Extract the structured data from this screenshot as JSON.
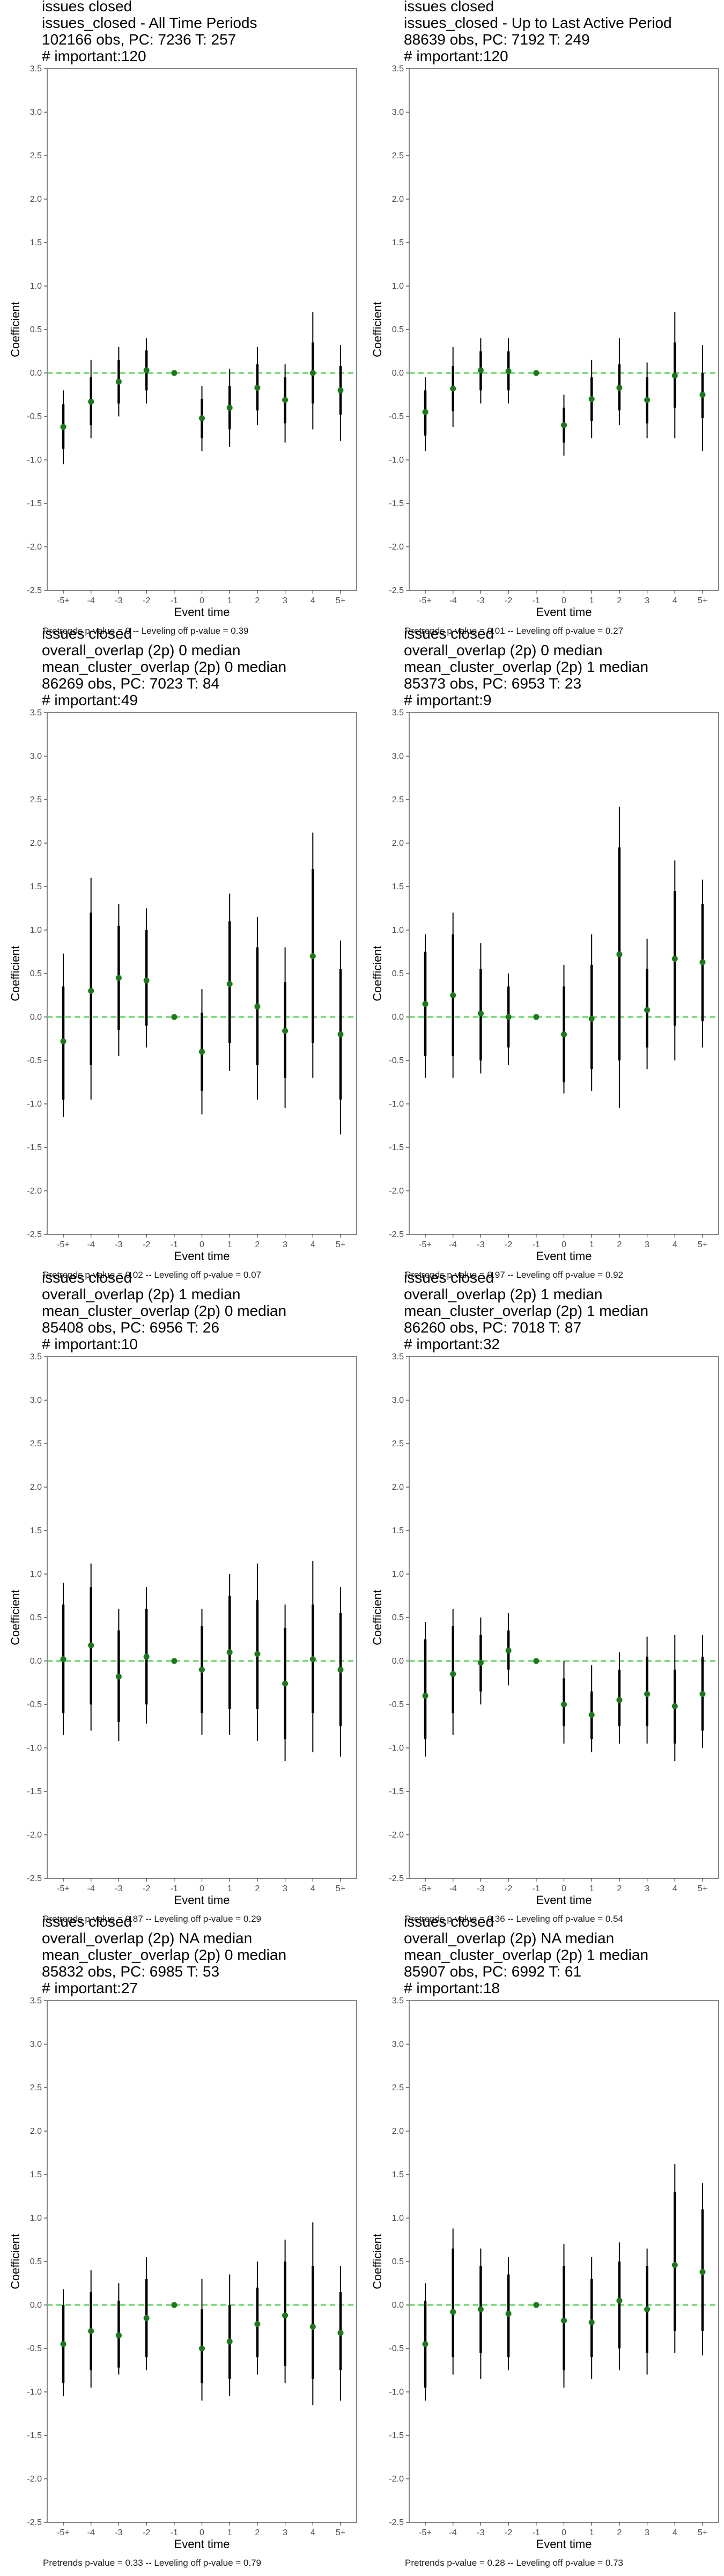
{
  "common": {
    "xlabel": "Event time",
    "ylabel": "Coefficient",
    "x_categories": [
      "-5+",
      "-4",
      "-3",
      "-2",
      "-1",
      "0",
      "1",
      "2",
      "3",
      "4",
      "5+"
    ],
    "y_ticks": [
      "3.5",
      "3.0",
      "2.5",
      "2.0",
      "1.5",
      "1.0",
      "0.5",
      "0.0",
      "-0.5",
      "-1.0",
      "-1.5",
      "-2.0",
      "-2.5"
    ],
    "ylim": [
      -2.5,
      3.5
    ],
    "reference_line": 0,
    "point_color": "#1a7a1a",
    "reference_color": "#33cc33",
    "ci_color": "#000000"
  },
  "chart_data": [
    {
      "type": "scatter",
      "title_lines": [
        "issues closed",
        "issues_closed - All Time Periods",
        "102166 obs, PC: 7236 T: 257",
        "# important:120"
      ],
      "footer": "Pretrends p-value = 0 -- Leveling off p-value = 0.39",
      "points": [
        -0.62,
        -0.33,
        -0.1,
        0.03,
        0.0,
        -0.52,
        -0.4,
        -0.17,
        -0.31,
        0.0,
        -0.2
      ],
      "ci_inner": [
        [
          -0.87,
          -0.36
        ],
        [
          -0.6,
          -0.05
        ],
        [
          -0.35,
          0.15
        ],
        [
          -0.2,
          0.26
        ],
        null,
        [
          -0.75,
          -0.3
        ],
        [
          -0.65,
          -0.15
        ],
        [
          -0.43,
          0.1
        ],
        [
          -0.58,
          -0.05
        ],
        [
          -0.35,
          0.35
        ],
        [
          -0.48,
          0.08
        ]
      ],
      "ci_outer": [
        [
          -1.05,
          -0.2
        ],
        [
          -0.75,
          0.15
        ],
        [
          -0.5,
          0.3
        ],
        [
          -0.35,
          0.4
        ],
        null,
        [
          -0.9,
          -0.15
        ],
        [
          -0.85,
          0.05
        ],
        [
          -0.6,
          0.3
        ],
        [
          -0.8,
          0.1
        ],
        [
          -0.65,
          0.7
        ],
        [
          -0.78,
          0.32
        ]
      ]
    },
    {
      "type": "scatter",
      "title_lines": [
        "issues closed",
        "issues_closed - Up to Last Active Period",
        "88639 obs, PC: 7192 T: 249",
        "# important:120"
      ],
      "footer": "Pretrends p-value = 0.01 -- Leveling off p-value = 0.27",
      "points": [
        -0.45,
        -0.18,
        0.03,
        0.02,
        0.0,
        -0.6,
        -0.3,
        -0.17,
        -0.31,
        -0.03,
        -0.25
      ],
      "ci_inner": [
        [
          -0.72,
          -0.2
        ],
        [
          -0.44,
          0.08
        ],
        [
          -0.2,
          0.25
        ],
        [
          -0.2,
          0.25
        ],
        null,
        [
          -0.8,
          -0.4
        ],
        [
          -0.55,
          -0.05
        ],
        [
          -0.43,
          0.1
        ],
        [
          -0.58,
          -0.05
        ],
        [
          -0.4,
          0.35
        ],
        [
          -0.52,
          0.0
        ]
      ],
      "ci_outer": [
        [
          -0.9,
          -0.05
        ],
        [
          -0.62,
          0.3
        ],
        [
          -0.35,
          0.4
        ],
        [
          -0.35,
          0.4
        ],
        null,
        [
          -0.95,
          -0.25
        ],
        [
          -0.75,
          0.15
        ],
        [
          -0.6,
          0.4
        ],
        [
          -0.75,
          0.12
        ],
        [
          -0.75,
          0.7
        ],
        [
          -0.9,
          0.32
        ]
      ]
    },
    {
      "type": "scatter",
      "title_lines": [
        "issues closed",
        "overall_overlap (2p) 0 median",
        "mean_cluster_overlap (2p) 0 median",
        "86269 obs, PC: 7023 T: 84",
        "# important:49"
      ],
      "footer": "Pretrends p-value = 0.02 -- Leveling off p-value = 0.07",
      "points": [
        -0.28,
        0.3,
        0.45,
        0.42,
        0.0,
        -0.4,
        0.38,
        0.12,
        -0.16,
        0.7,
        -0.2
      ],
      "ci_inner": [
        [
          -0.95,
          0.35
        ],
        [
          -0.55,
          1.2
        ],
        [
          -0.15,
          1.05
        ],
        [
          -0.1,
          1.0
        ],
        null,
        [
          -0.85,
          0.05
        ],
        [
          -0.3,
          1.1
        ],
        [
          -0.55,
          0.8
        ],
        [
          -0.7,
          0.4
        ],
        [
          -0.3,
          1.7
        ],
        [
          -0.95,
          0.55
        ]
      ],
      "ci_outer": [
        [
          -1.15,
          0.73
        ],
        [
          -0.95,
          1.6
        ],
        [
          -0.45,
          1.3
        ],
        [
          -0.35,
          1.25
        ],
        null,
        [
          -1.12,
          0.32
        ],
        [
          -0.62,
          1.42
        ],
        [
          -0.95,
          1.15
        ],
        [
          -1.05,
          0.8
        ],
        [
          -0.7,
          2.12
        ],
        [
          -1.35,
          0.88
        ]
      ]
    },
    {
      "type": "scatter",
      "title_lines": [
        "issues closed",
        "overall_overlap (2p) 0 median",
        "mean_cluster_overlap (2p) 1 median",
        "85373 obs, PC: 6953 T: 23",
        "# important:9"
      ],
      "footer": "Pretrends p-value = 0.97 -- Leveling off p-value = 0.92",
      "points": [
        0.15,
        0.25,
        0.04,
        0.0,
        0.0,
        -0.2,
        -0.02,
        0.72,
        0.08,
        0.67,
        0.63
      ],
      "ci_inner": [
        [
          -0.45,
          0.75
        ],
        [
          -0.45,
          0.95
        ],
        [
          -0.5,
          0.55
        ],
        [
          -0.35,
          0.35
        ],
        null,
        [
          -0.75,
          0.35
        ],
        [
          -0.6,
          0.6
        ],
        [
          -0.5,
          1.95
        ],
        [
          -0.35,
          0.55
        ],
        [
          -0.1,
          1.45
        ],
        [
          -0.05,
          1.3
        ]
      ],
      "ci_outer": [
        [
          -0.7,
          0.95
        ],
        [
          -0.7,
          1.2
        ],
        [
          -0.65,
          0.85
        ],
        [
          -0.55,
          0.5
        ],
        null,
        [
          -0.88,
          0.6
        ],
        [
          -0.85,
          0.95
        ],
        [
          -1.05,
          2.42
        ],
        [
          -0.6,
          0.9
        ],
        [
          -0.5,
          1.8
        ],
        [
          -0.35,
          1.58
        ]
      ]
    },
    {
      "type": "scatter",
      "title_lines": [
        "issues closed",
        "overall_overlap (2p) 1 median",
        "mean_cluster_overlap (2p) 0 median",
        "85408 obs, PC: 6956 T: 26",
        "# important:10"
      ],
      "footer": "Pretrends p-value = 0.87 -- Leveling off p-value = 0.29",
      "points": [
        0.02,
        0.18,
        -0.18,
        0.05,
        0.0,
        -0.1,
        0.1,
        0.08,
        -0.26,
        0.02,
        -0.1
      ],
      "ci_inner": [
        [
          -0.6,
          0.65
        ],
        [
          -0.5,
          0.85
        ],
        [
          -0.7,
          0.35
        ],
        [
          -0.5,
          0.6
        ],
        null,
        [
          -0.6,
          0.4
        ],
        [
          -0.55,
          0.75
        ],
        [
          -0.55,
          0.7
        ],
        [
          -0.9,
          0.38
        ],
        [
          -0.6,
          0.65
        ],
        [
          -0.75,
          0.55
        ]
      ],
      "ci_outer": [
        [
          -0.85,
          0.9
        ],
        [
          -0.8,
          1.12
        ],
        [
          -0.92,
          0.6
        ],
        [
          -0.72,
          0.85
        ],
        null,
        [
          -0.85,
          0.6
        ],
        [
          -0.85,
          1.0
        ],
        [
          -0.92,
          1.12
        ],
        [
          -1.15,
          0.65
        ],
        [
          -1.05,
          1.15
        ],
        [
          -1.1,
          0.85
        ]
      ]
    },
    {
      "type": "scatter",
      "title_lines": [
        "issues closed",
        "overall_overlap (2p) 1 median",
        "mean_cluster_overlap (2p) 1 median",
        "86260 obs, PC: 7018 T: 87",
        "# important:32"
      ],
      "footer": "Pretrends p-value = 0.36 -- Leveling off p-value = 0.54",
      "points": [
        -0.4,
        -0.15,
        -0.02,
        0.12,
        0.0,
        -0.5,
        -0.62,
        -0.45,
        -0.38,
        -0.52,
        -0.38
      ],
      "ci_inner": [
        [
          -0.9,
          0.25
        ],
        [
          -0.6,
          0.4
        ],
        [
          -0.35,
          0.3
        ],
        [
          -0.1,
          0.35
        ],
        null,
        [
          -0.75,
          -0.2
        ],
        [
          -0.9,
          -0.35
        ],
        [
          -0.75,
          -0.1
        ],
        [
          -0.75,
          0.05
        ],
        [
          -0.95,
          -0.1
        ],
        [
          -0.8,
          0.05
        ]
      ],
      "ci_outer": [
        [
          -1.1,
          0.45
        ],
        [
          -0.85,
          0.6
        ],
        [
          -0.5,
          0.5
        ],
        [
          -0.28,
          0.55
        ],
        null,
        [
          -0.95,
          0.0
        ],
        [
          -1.05,
          -0.05
        ],
        [
          -0.95,
          0.1
        ],
        [
          -0.95,
          0.28
        ],
        [
          -1.15,
          0.3
        ],
        [
          -1.0,
          0.3
        ]
      ]
    },
    {
      "type": "scatter",
      "title_lines": [
        "issues closed",
        "overall_overlap (2p) NA median",
        "mean_cluster_overlap (2p) 0 median",
        "85832 obs, PC: 6985 T: 53",
        "# important:27"
      ],
      "footer": "Pretrends p-value = 0.33 -- Leveling off p-value = 0.79",
      "points": [
        -0.45,
        -0.3,
        -0.35,
        -0.15,
        0.0,
        -0.5,
        -0.42,
        -0.22,
        -0.12,
        -0.25,
        -0.32
      ],
      "ci_inner": [
        [
          -0.9,
          0.0
        ],
        [
          -0.75,
          0.15
        ],
        [
          -0.72,
          0.05
        ],
        [
          -0.6,
          0.3
        ],
        null,
        [
          -0.9,
          -0.05
        ],
        [
          -0.85,
          0.0
        ],
        [
          -0.6,
          0.2
        ],
        [
          -0.7,
          0.5
        ],
        [
          -0.85,
          0.45
        ],
        [
          -0.75,
          0.15
        ]
      ],
      "ci_outer": [
        [
          -1.05,
          0.18
        ],
        [
          -0.95,
          0.4
        ],
        [
          -0.8,
          0.25
        ],
        [
          -0.75,
          0.55
        ],
        null,
        [
          -1.1,
          0.3
        ],
        [
          -1.05,
          0.35
        ],
        [
          -0.8,
          0.5
        ],
        [
          -0.9,
          0.75
        ],
        [
          -1.15,
          0.95
        ],
        [
          -1.1,
          0.45
        ]
      ]
    },
    {
      "type": "scatter",
      "title_lines": [
        "issues closed",
        "overall_overlap (2p) NA median",
        "mean_cluster_overlap (2p) 1 median",
        "85907 obs, PC: 6992 T: 61",
        "# important:18"
      ],
      "footer": "Pretrends p-value = 0.28 -- Leveling off p-value = 0.73",
      "points": [
        -0.45,
        -0.08,
        -0.05,
        -0.1,
        0.0,
        -0.18,
        -0.2,
        0.05,
        -0.05,
        0.46,
        0.38
      ],
      "ci_inner": [
        [
          -0.95,
          0.05
        ],
        [
          -0.6,
          0.65
        ],
        [
          -0.55,
          0.45
        ],
        [
          -0.6,
          0.35
        ],
        null,
        [
          -0.75,
          0.45
        ],
        [
          -0.6,
          0.3
        ],
        [
          -0.5,
          0.5
        ],
        [
          -0.55,
          0.45
        ],
        [
          -0.3,
          1.3
        ],
        [
          -0.3,
          1.1
        ]
      ],
      "ci_outer": [
        [
          -1.1,
          0.25
        ],
        [
          -0.8,
          0.88
        ],
        [
          -0.85,
          0.65
        ],
        [
          -0.75,
          0.55
        ],
        null,
        [
          -0.95,
          0.7
        ],
        [
          -0.85,
          0.55
        ],
        [
          -0.75,
          0.72
        ],
        [
          -0.8,
          0.65
        ],
        [
          -0.55,
          1.62
        ],
        [
          -0.58,
          1.4
        ]
      ]
    }
  ]
}
